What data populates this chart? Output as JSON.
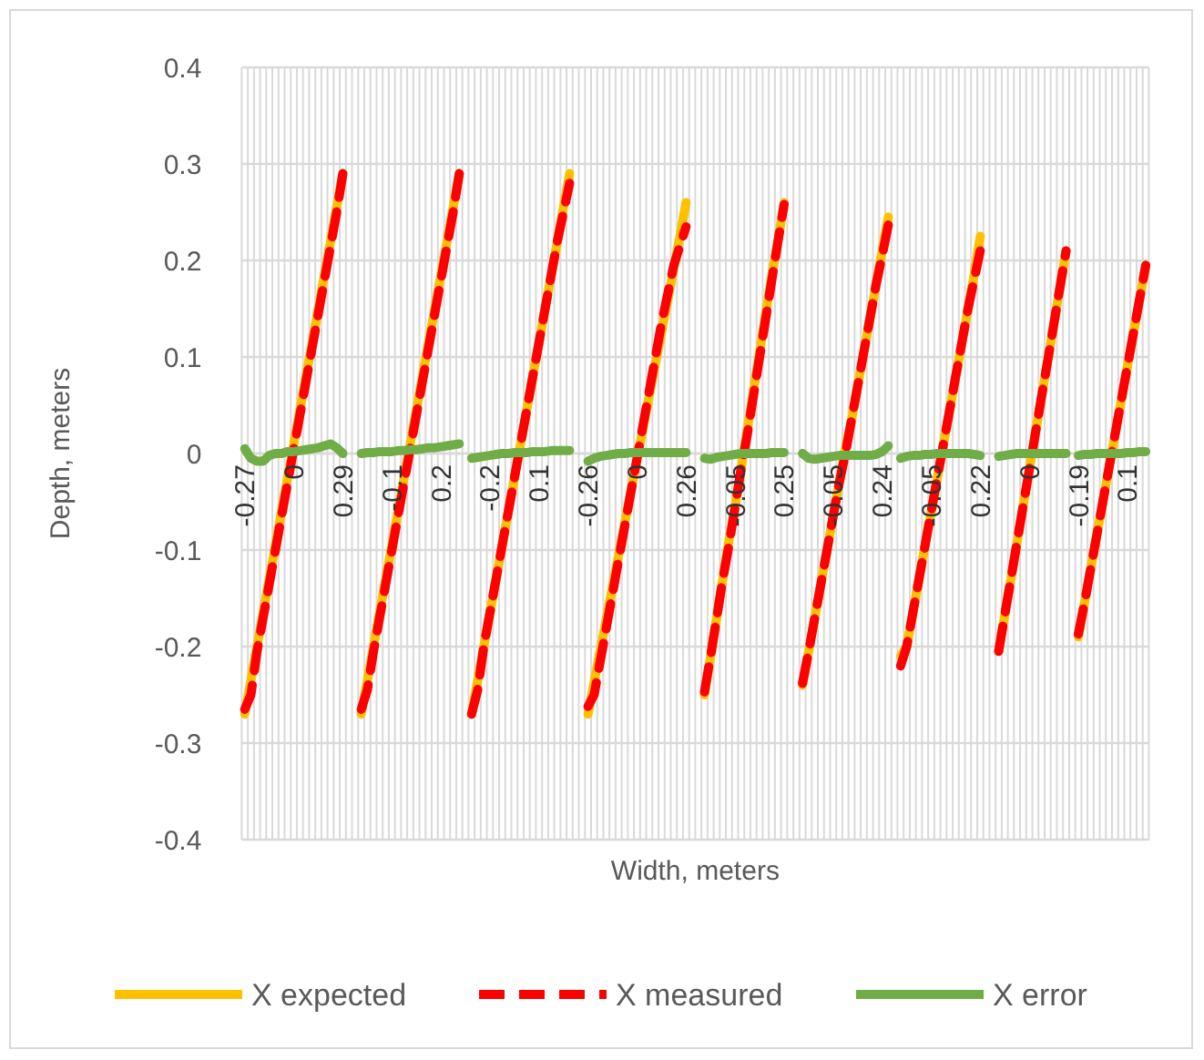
{
  "chart_data": {
    "type": "line",
    "xlabel": "Width, meters",
    "ylabel": "Depth, meters",
    "ylim": [
      -0.4,
      0.4
    ],
    "yticks": [
      -0.4,
      -0.3,
      -0.2,
      -0.1,
      0,
      0.1,
      0.2,
      0.3,
      0.4
    ],
    "grid": true,
    "legend": "bottom",
    "marker": "none",
    "categories": [
      "-0.27",
      null,
      null,
      null,
      null,
      null,
      null,
      null,
      "0",
      null,
      null,
      null,
      null,
      null,
      null,
      null,
      "0.29",
      null,
      null,
      null,
      null,
      null,
      null,
      null,
      "-0.1",
      null,
      null,
      null,
      null,
      null,
      null,
      null,
      "0.2",
      null,
      null,
      null,
      null,
      null,
      null,
      null,
      "-0.2",
      null,
      null,
      null,
      null,
      null,
      null,
      null,
      "0.1",
      null,
      null,
      null,
      null,
      null,
      null,
      null,
      "-0.26",
      null,
      null,
      null,
      null,
      null,
      null,
      null,
      "0",
      null,
      null,
      null,
      null,
      null,
      null,
      null,
      "0.26",
      null,
      null,
      null,
      null,
      null,
      null,
      null,
      "-0.05",
      null,
      null,
      null,
      null,
      null,
      null,
      null,
      "0.25",
      null,
      null,
      null,
      null,
      null,
      null,
      null,
      "-0.05",
      null,
      null,
      null,
      null,
      null,
      null,
      null,
      "0.24",
      null,
      null,
      null,
      null,
      null,
      null,
      null,
      "-0.05",
      null,
      null,
      null,
      null,
      null,
      null,
      null,
      "0.22",
      null,
      null,
      null,
      null,
      null,
      null,
      null,
      "0",
      null,
      null,
      null,
      null,
      null,
      null,
      null,
      "-0.19",
      null,
      null,
      null,
      null,
      null,
      null,
      null,
      "0.1",
      null,
      null,
      null
    ],
    "series": [
      {
        "name": "X expected",
        "color": "#ffc000",
        "line_style": "solid",
        "values": [
          -0.27,
          -0.235,
          -0.2,
          -0.165,
          -0.13,
          -0.095,
          -0.06,
          -0.025,
          0.01,
          0.045,
          0.08,
          0.115,
          0.15,
          0.185,
          0.22,
          0.255,
          0.29,
          null,
          null,
          -0.27,
          -0.235,
          -0.2,
          -0.165,
          -0.13,
          -0.095,
          -0.06,
          -0.025,
          0.01,
          0.045,
          0.08,
          0.115,
          0.15,
          0.185,
          0.22,
          0.255,
          0.29,
          null,
          -0.27,
          -0.235,
          -0.2,
          -0.165,
          -0.13,
          -0.095,
          -0.06,
          -0.025,
          0.01,
          0.045,
          0.08,
          0.115,
          0.15,
          0.185,
          0.22,
          0.255,
          0.29,
          null,
          null,
          -0.27,
          -0.237,
          -0.204,
          -0.171,
          -0.138,
          -0.105,
          -0.072,
          -0.039,
          -0.006,
          0.027,
          0.06,
          0.093,
          0.126,
          0.159,
          0.192,
          0.225,
          0.26,
          null,
          null,
          -0.25,
          -0.21,
          -0.17,
          -0.13,
          -0.09,
          -0.055,
          -0.015,
          0.025,
          0.065,
          0.105,
          0.145,
          0.185,
          0.22,
          0.26,
          null,
          null,
          -0.24,
          -0.205,
          -0.17,
          -0.135,
          -0.1,
          -0.065,
          -0.03,
          0.005,
          0.035,
          0.07,
          0.105,
          0.14,
          0.175,
          0.21,
          0.245,
          null,
          -0.21,
          -0.2,
          -0.165,
          -0.13,
          -0.095,
          -0.06,
          -0.025,
          0.01,
          0.045,
          0.08,
          0.115,
          0.15,
          0.185,
          0.225,
          null,
          null,
          -0.205,
          -0.167,
          -0.13,
          -0.092,
          -0.054,
          -0.017,
          0.021,
          0.059,
          0.096,
          0.134,
          0.172,
          0.21,
          null,
          -0.19,
          -0.155,
          -0.12,
          -0.085,
          -0.05,
          -0.015,
          0.02,
          0.055,
          0.09,
          0.125,
          0.16,
          0.195
        ]
      },
      {
        "name": "X measured",
        "color": "#ff0000",
        "line_style": "dashed",
        "values": [
          -0.265,
          -0.25,
          -0.205,
          -0.17,
          -0.135,
          -0.1,
          -0.065,
          -0.03,
          0.005,
          0.04,
          0.075,
          0.11,
          0.145,
          0.18,
          0.215,
          0.25,
          0.29,
          null,
          null,
          -0.265,
          -0.245,
          -0.205,
          -0.17,
          -0.135,
          -0.1,
          -0.065,
          -0.03,
          0.005,
          0.04,
          0.075,
          0.11,
          0.145,
          0.18,
          0.215,
          0.25,
          0.29,
          null,
          -0.27,
          -0.245,
          -0.2,
          -0.165,
          -0.13,
          -0.095,
          -0.06,
          -0.025,
          0.01,
          0.045,
          0.08,
          0.115,
          0.15,
          0.185,
          0.22,
          0.25,
          0.28,
          null,
          null,
          -0.262,
          -0.25,
          -0.215,
          -0.18,
          -0.145,
          -0.11,
          -0.075,
          -0.04,
          -0.005,
          0.03,
          0.065,
          0.1,
          0.135,
          0.165,
          0.195,
          0.215,
          0.235,
          null,
          null,
          -0.247,
          -0.21,
          -0.17,
          -0.13,
          -0.095,
          -0.055,
          -0.015,
          0.02,
          0.06,
          0.1,
          0.14,
          0.18,
          0.22,
          0.258,
          null,
          null,
          -0.238,
          -0.205,
          -0.17,
          -0.135,
          -0.1,
          -0.065,
          -0.03,
          0,
          0.035,
          0.07,
          0.105,
          0.14,
          0.175,
          0.205,
          0.237,
          null,
          -0.22,
          -0.2,
          -0.165,
          -0.13,
          -0.095,
          -0.06,
          -0.025,
          0.01,
          0.045,
          0.08,
          0.115,
          0.15,
          0.18,
          0.21,
          null,
          null,
          -0.205,
          -0.167,
          -0.13,
          -0.092,
          -0.054,
          -0.017,
          0.021,
          0.059,
          0.096,
          0.134,
          0.172,
          0.21,
          null,
          -0.187,
          -0.155,
          -0.12,
          -0.085,
          -0.05,
          -0.015,
          0.02,
          0.055,
          0.09,
          0.125,
          0.16,
          0.195
        ]
      },
      {
        "name": "X error",
        "color": "#70ad47",
        "line_style": "solid",
        "values": [
          0.005,
          -0.005,
          -0.008,
          -0.008,
          -0.002,
          0,
          0,
          0.002,
          0.002,
          0.003,
          0.004,
          0.005,
          0.006,
          0.008,
          0.01,
          0.006,
          0,
          null,
          null,
          0,
          0.001,
          0.001,
          0.002,
          0.002,
          0.002,
          0.003,
          0.003,
          0.004,
          0.004,
          0.005,
          0.006,
          0.006,
          0.007,
          0.008,
          0.009,
          0.01,
          null,
          -0.005,
          -0.004,
          -0.003,
          -0.002,
          -0.001,
          0,
          0,
          0.001,
          0.001,
          0.001,
          0.002,
          0.002,
          0.002,
          0.003,
          0.003,
          0.003,
          0.003,
          null,
          null,
          -0.008,
          -0.005,
          -0.003,
          -0.002,
          -0.001,
          0,
          0,
          0.001,
          0.001,
          0.001,
          0.001,
          0.001,
          0.001,
          0.001,
          0.001,
          0.001,
          0.001,
          null,
          null,
          -0.005,
          -0.006,
          -0.004,
          -0.003,
          -0.002,
          -0.001,
          0,
          0,
          0,
          0,
          0,
          0.001,
          0.001,
          0.001,
          null,
          null,
          0,
          -0.005,
          -0.006,
          -0.005,
          -0.004,
          -0.003,
          -0.002,
          -0.002,
          -0.002,
          -0.002,
          -0.002,
          -0.002,
          -0.001,
          0.002,
          0.008,
          null,
          -0.005,
          -0.003,
          -0.002,
          -0.002,
          -0.001,
          -0.001,
          0,
          0,
          0,
          0,
          0,
          0,
          -0.001,
          -0.002,
          null,
          null,
          -0.003,
          -0.002,
          -0.001,
          0,
          0,
          0,
          0,
          0,
          0,
          0,
          0,
          0,
          null,
          -0.002,
          -0.001,
          -0.001,
          0,
          0,
          0,
          0,
          0,
          0.001,
          0.001,
          0.002,
          0.002
        ]
      }
    ]
  }
}
